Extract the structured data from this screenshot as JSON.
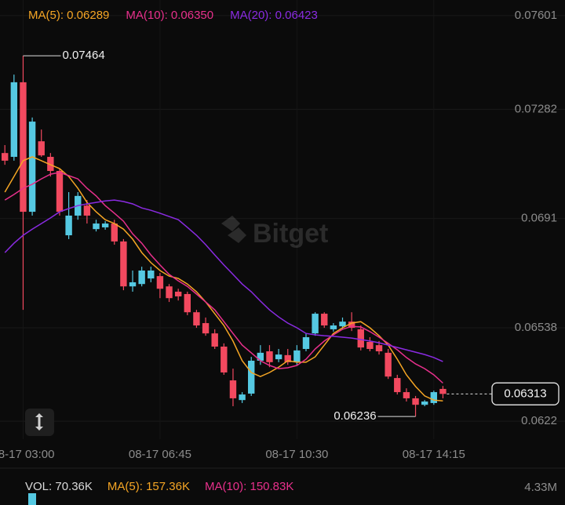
{
  "chart_data": {
    "type": "candlestick",
    "categories": [
      null,
      null,
      "08-17 03:00",
      null,
      null,
      null,
      null,
      null,
      null,
      null,
      null,
      null,
      null,
      null,
      null,
      null,
      null,
      "08-17 06:45",
      null,
      null,
      null,
      null,
      null,
      null,
      null,
      null,
      null,
      null,
      null,
      null,
      null,
      null,
      "08-17 10:30",
      null,
      null,
      null,
      null,
      null,
      null,
      null,
      null,
      null,
      null,
      null,
      null,
      null,
      null,
      "08-17 14:15",
      null
    ],
    "open": [
      0.07133,
      0.0712,
      0.07374,
      0.06933,
      0.07173,
      0.0712,
      0.07072,
      0.06853,
      0.0692,
      0.06954,
      0.06874,
      0.0688,
      0.06893,
      0.06832,
      0.06679,
      0.06687,
      0.06706,
      0.06714,
      0.06679,
      0.06661,
      0.06653,
      0.06591,
      0.06554,
      0.06519,
      0.06474,
      0.06359,
      0.06292,
      0.06314,
      0.06426,
      0.06458,
      0.06431,
      0.06445,
      0.06421,
      0.06466,
      0.06519,
      0.06586,
      0.06533,
      0.06543,
      0.06559,
      0.06533,
      0.0649,
      0.06479,
      0.06453,
      0.06367,
      0.06319,
      0.06298,
      0.06276,
      0.06282,
      0.0633
    ],
    "high": [
      0.0716,
      0.074,
      0.07464,
      0.07254,
      0.07213,
      0.07133,
      0.0708,
      0.07,
      0.07,
      0.06973,
      0.06906,
      0.06901,
      0.06906,
      0.0684,
      0.06733,
      0.06746,
      0.06746,
      0.06725,
      0.06687,
      0.06671,
      0.06661,
      0.06599,
      0.06573,
      0.06533,
      0.06485,
      0.06399,
      0.06319,
      0.06439,
      0.06479,
      0.06479,
      0.06466,
      0.06466,
      0.06479,
      0.06519,
      0.06591,
      0.06591,
      0.06554,
      0.06573,
      0.06591,
      0.06546,
      0.06506,
      0.06493,
      0.06466,
      0.06378,
      0.06332,
      0.06306,
      0.06292,
      0.06324,
      0.0634
    ],
    "low": [
      0.07093,
      0.07107,
      0.06599,
      0.0692,
      0.0712,
      0.07053,
      0.0692,
      0.0684,
      0.06906,
      0.06893,
      0.06866,
      0.06872,
      0.06821,
      0.06666,
      0.06661,
      0.06679,
      0.06693,
      0.06639,
      0.06626,
      0.06631,
      0.06581,
      0.06538,
      0.06511,
      0.06466,
      0.06378,
      0.06271,
      0.06282,
      0.06306,
      0.06412,
      0.06404,
      0.06421,
      0.06412,
      0.06412,
      0.06458,
      0.06511,
      0.06538,
      0.06525,
      0.06533,
      0.06527,
      0.06461,
      0.06458,
      0.06447,
      0.06364,
      0.06311,
      0.06287,
      0.06236,
      0.06271,
      0.06276,
      0.06298
    ],
    "close": [
      0.07107,
      0.07374,
      0.06933,
      0.0724,
      0.07125,
      0.07072,
      0.06933,
      0.0692,
      0.06987,
      0.0692,
      0.06893,
      0.06893,
      0.06832,
      0.06679,
      0.06693,
      0.06733,
      0.06733,
      0.06671,
      0.06639,
      0.06645,
      0.06591,
      0.06546,
      0.06519,
      0.06474,
      0.06386,
      0.06298,
      0.06311,
      0.06426,
      0.06453,
      0.06421,
      0.06447,
      0.06421,
      0.06461,
      0.06506,
      0.06586,
      0.06546,
      0.06546,
      0.06559,
      0.06538,
      0.06471,
      0.06466,
      0.06458,
      0.06372,
      0.06319,
      0.06298,
      0.06276,
      0.06287,
      0.06319,
      0.06313
    ],
    "up_color": "#55c9e2",
    "down_color": "#f2495f",
    "series": [
      {
        "name": "MA(5): 0.06289",
        "color": "#f5a524",
        "values": [
          0.07,
          0.07053,
          0.07107,
          0.0712,
          0.07107,
          0.07093,
          0.0708,
          0.07053,
          0.07013,
          0.06965,
          0.06933,
          0.06906,
          0.06893,
          0.06874,
          0.0684,
          0.06794,
          0.0676,
          0.06733,
          0.06714,
          0.06706,
          0.06687,
          0.06661,
          0.06626,
          0.06586,
          0.06546,
          0.06493,
          0.06426,
          0.06386,
          0.06372,
          0.06386,
          0.06404,
          0.06426,
          0.06421,
          0.06421,
          0.06439,
          0.06479,
          0.06519,
          0.06538,
          0.06554,
          0.06559,
          0.06538,
          0.06511,
          0.06479,
          0.06431,
          0.06378,
          0.06338,
          0.06306,
          0.06292,
          0.06289
        ]
      },
      {
        "name": "MA(10): 0.06350",
        "color": "#e8308c",
        "values": [
          0.06973,
          0.06992,
          0.07013,
          0.07027,
          0.07045,
          0.07061,
          0.07067,
          0.07056,
          0.07045,
          0.07013,
          0.06987,
          0.06954,
          0.06928,
          0.06901,
          0.06858,
          0.06826,
          0.06786,
          0.06752,
          0.0672,
          0.06698,
          0.06679,
          0.06653,
          0.06626,
          0.06599,
          0.06559,
          0.06519,
          0.06479,
          0.06453,
          0.06426,
          0.0641,
          0.06399,
          0.06402,
          0.0641,
          0.06431,
          0.06466,
          0.06493,
          0.06514,
          0.06533,
          0.06543,
          0.06541,
          0.06525,
          0.06506,
          0.06485,
          0.06463,
          0.06437,
          0.06415,
          0.06399,
          0.06378,
          0.0635
        ]
      },
      {
        "name": "MA(20): 0.06423",
        "color": "#8a2be2",
        "values": [
          0.06794,
          0.06826,
          0.06853,
          0.06874,
          0.06893,
          0.06912,
          0.06933,
          0.06944,
          0.06954,
          0.0696,
          0.06965,
          0.0697,
          0.06973,
          0.06968,
          0.0696,
          0.06946,
          0.06938,
          0.06928,
          0.06917,
          0.06906,
          0.0688,
          0.06853,
          0.06821,
          0.06786,
          0.06752,
          0.0672,
          0.06687,
          0.06661,
          0.06629,
          0.06599,
          0.06575,
          0.06554,
          0.06538,
          0.06519,
          0.06514,
          0.06511,
          0.06509,
          0.06506,
          0.06503,
          0.06498,
          0.06493,
          0.06487,
          0.06479,
          0.06471,
          0.06463,
          0.06455,
          0.06447,
          0.06437,
          0.06423
        ]
      }
    ],
    "ylim": [
      0.06159,
      0.07654
    ],
    "yticks": [
      0.07601,
      0.07282,
      0.0691,
      0.06538,
      0.0622
    ],
    "grid": true,
    "watermark": "Bitget",
    "volume": {
      "legend": [
        {
          "text": "VOL: 70.36K",
          "color": "#d9d9d9"
        },
        {
          "text": "MA(5): 157.36K",
          "color": "#f5a524"
        },
        {
          "text": "MA(10): 150.83K",
          "color": "#e8308c"
        }
      ],
      "axis_label": "4.33M"
    }
  }
}
